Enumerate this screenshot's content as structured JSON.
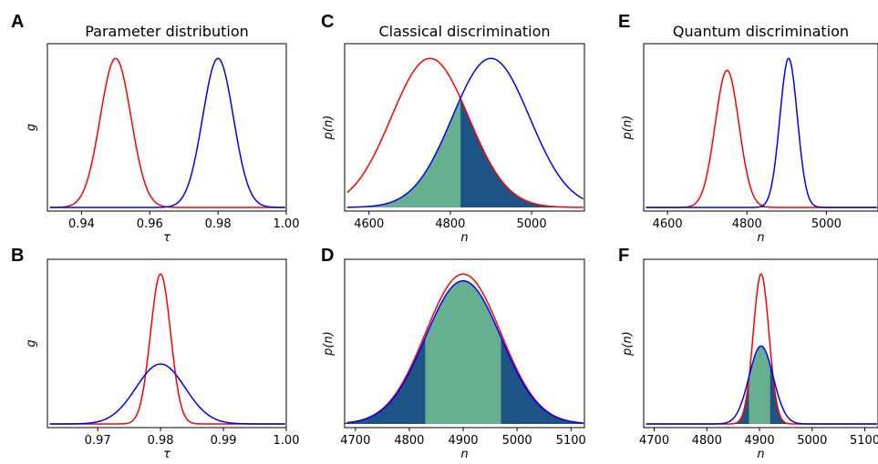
{
  "chart_data": [
    {
      "panel": "A",
      "type": "line",
      "title": "Parameter distribution",
      "xlabel": "τ",
      "ylabel": "g",
      "xlim": [
        0.93,
        1.0
      ],
      "xticks": [
        "0.94",
        "0.96",
        "0.98",
        "1.00"
      ],
      "xtick_values": [
        0.94,
        0.96,
        0.98,
        1.0
      ],
      "ylim": [
        0,
        1.05
      ],
      "grid": false,
      "series": [
        {
          "color": "#ff0000",
          "kind": "gaussian",
          "mean": 0.95,
          "sd": 0.0045,
          "peak": 1.0
        },
        {
          "color": "#0000ff",
          "kind": "gaussian",
          "mean": 0.98,
          "sd": 0.0045,
          "peak": 1.0
        }
      ]
    },
    {
      "panel": "B",
      "type": "line",
      "title": "",
      "xlabel": "τ",
      "ylabel": "g",
      "xlim": [
        0.962,
        1.0
      ],
      "xticks": [
        "0.97",
        "0.98",
        "0.99",
        "1.00"
      ],
      "xtick_values": [
        0.97,
        0.98,
        0.99,
        1.0
      ],
      "ylim": [
        0,
        1.05
      ],
      "grid": false,
      "series": [
        {
          "color": "#ff0000",
          "kind": "gaussian",
          "mean": 0.98,
          "sd": 0.0016,
          "peak": 1.0
        },
        {
          "color": "#0000ff",
          "kind": "gaussian",
          "mean": 0.98,
          "sd": 0.0039,
          "peak": 0.4
        }
      ]
    },
    {
      "panel": "C",
      "type": "area",
      "title": "Classical discrimination",
      "xlabel": "n",
      "ylabel": "p(n)",
      "xlim": [
        4540,
        5130
      ],
      "xticks": [
        "4600",
        "4800",
        "5000"
      ],
      "xtick_values": [
        4600,
        4800,
        5000
      ],
      "ylim": [
        0,
        1.05
      ],
      "grid": false,
      "series": [
        {
          "color": "#ff0000",
          "kind": "gaussian",
          "mean": 4750,
          "sd": 95,
          "peak": 1.0
        },
        {
          "color": "#0000ff",
          "kind": "gaussian",
          "mean": 4900,
          "sd": 95,
          "peak": 1.0
        }
      ],
      "shading": [
        {
          "color": "#66b08f",
          "from": 4540,
          "to": 4825,
          "under": "min"
        },
        {
          "color": "#1e5485",
          "from": 4825,
          "to": 5130,
          "under": "min"
        }
      ]
    },
    {
      "panel": "D",
      "type": "area",
      "title": "",
      "xlabel": "n",
      "ylabel": "p(n)",
      "xlim": [
        4680,
        5125
      ],
      "xticks": [
        "4700",
        "4800",
        "4900",
        "5000",
        "5100"
      ],
      "xtick_values": [
        4700,
        4800,
        4900,
        5000,
        5100
      ],
      "ylim": [
        0,
        1.05
      ],
      "grid": false,
      "series": [
        {
          "color": "#ff0000",
          "kind": "gaussian",
          "mean": 4900,
          "sd": 70,
          "peak": 1.0
        },
        {
          "color": "#0000ff",
          "kind": "gaussian",
          "mean": 4900,
          "sd": 70,
          "peak": 0.955
        }
      ],
      "shading": [
        {
          "color": "#1e5485",
          "from": 4680,
          "to": 4830,
          "under": "min"
        },
        {
          "color": "#66b08f",
          "from": 4830,
          "to": 4970,
          "under": "min"
        },
        {
          "color": "#1e5485",
          "from": 4970,
          "to": 5125,
          "under": "min"
        }
      ]
    },
    {
      "panel": "E",
      "type": "line",
      "title": "Quantum discrimination",
      "xlabel": "n",
      "ylabel": "p(n)",
      "xlim": [
        4540,
        5130
      ],
      "xticks": [
        "4600",
        "4800",
        "5000"
      ],
      "xtick_values": [
        4600,
        4800,
        5000
      ],
      "ylim": [
        0,
        1.05
      ],
      "grid": false,
      "series": [
        {
          "color": "#ff0000",
          "kind": "gaussian",
          "mean": 4750,
          "sd": 30,
          "peak": 0.92
        },
        {
          "color": "#0000ff",
          "kind": "gaussian",
          "mean": 4905,
          "sd": 22,
          "peak": 1.0
        }
      ],
      "shading": [
        {
          "color": "#66b08f",
          "from": 4540,
          "to": 4830,
          "under": "min"
        },
        {
          "color": "#1e5485",
          "from": 4830,
          "to": 5130,
          "under": "min"
        }
      ]
    },
    {
      "panel": "F",
      "type": "area",
      "title": "",
      "xlabel": "n",
      "ylabel": "p(n)",
      "xlim": [
        4680,
        5125
      ],
      "xticks": [
        "4700",
        "4800",
        "4900",
        "5000",
        "5100"
      ],
      "xtick_values": [
        4700,
        4800,
        4900,
        5000,
        5100
      ],
      "ylim": [
        0,
        1.05
      ],
      "grid": false,
      "series": [
        {
          "color": "#ff0000",
          "kind": "gaussian",
          "mean": 4903,
          "sd": 15,
          "peak": 1.0
        },
        {
          "color": "#0000ff",
          "kind": "gaussian",
          "mean": 4903,
          "sd": 23,
          "peak": 0.52
        }
      ],
      "shading": [
        {
          "color": "#1e5485",
          "from": 4680,
          "to": 4880,
          "under": "min"
        },
        {
          "color": "#66b08f",
          "from": 4880,
          "to": 4920,
          "under": "min"
        },
        {
          "color": "#1e5485",
          "from": 4920,
          "to": 5125,
          "under": "min"
        }
      ]
    }
  ],
  "colors": {
    "frame": "#000000",
    "red": "#ff0000",
    "blue": "#0000ff",
    "green_fill": "#66b08f",
    "navy_fill": "#1e5485"
  }
}
